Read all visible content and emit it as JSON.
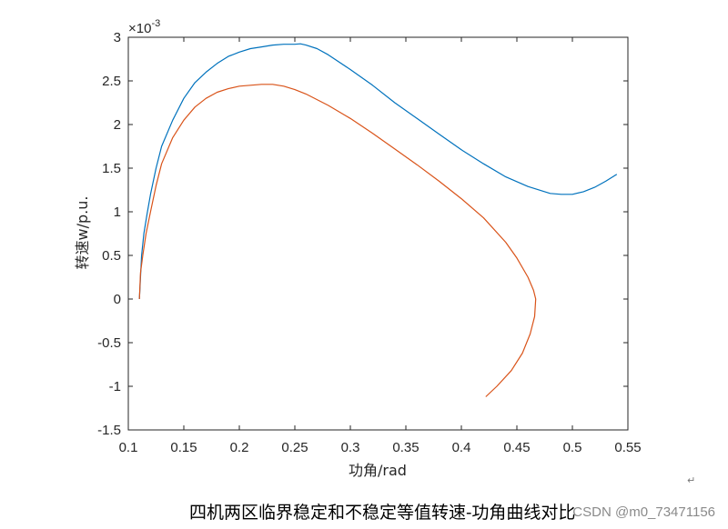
{
  "chart_data": {
    "type": "line",
    "xlabel": "功角/rad",
    "ylabel": "转速w/p.u.",
    "exponent_base": "×10",
    "exponent_power": "-3",
    "xlim": [
      0.1,
      0.55
    ],
    "ylim": [
      -1.5,
      3
    ],
    "xticks": [
      "0.1",
      "0.15",
      "0.2",
      "0.25",
      "0.3",
      "0.35",
      "0.4",
      "0.45",
      "0.5",
      "0.55"
    ],
    "yticks": [
      "-1.5",
      "-1",
      "-0.5",
      "0",
      "0.5",
      "1",
      "1.5",
      "2",
      "2.5",
      "3"
    ],
    "grid": false,
    "series": [
      {
        "color": "#0072BD",
        "x": [
          0.11,
          0.111,
          0.112,
          0.114,
          0.117,
          0.12,
          0.125,
          0.13,
          0.14,
          0.15,
          0.16,
          0.17,
          0.18,
          0.19,
          0.2,
          0.21,
          0.22,
          0.23,
          0.24,
          0.25,
          0.255,
          0.26,
          0.27,
          0.28,
          0.3,
          0.32,
          0.34,
          0.36,
          0.38,
          0.4,
          0.42,
          0.44,
          0.46,
          0.48,
          0.49,
          0.5,
          0.51,
          0.52,
          0.53,
          0.54
        ],
        "y": [
          0.0,
          0.25,
          0.5,
          0.75,
          0.98,
          1.2,
          1.5,
          1.75,
          2.05,
          2.3,
          2.48,
          2.6,
          2.7,
          2.78,
          2.83,
          2.87,
          2.89,
          2.91,
          2.92,
          2.92,
          2.925,
          2.91,
          2.87,
          2.8,
          2.63,
          2.45,
          2.25,
          2.07,
          1.89,
          1.71,
          1.55,
          1.4,
          1.29,
          1.21,
          1.2,
          1.2,
          1.23,
          1.28,
          1.35,
          1.43
        ]
      },
      {
        "color": "#D95319",
        "x": [
          0.11,
          0.111,
          0.113,
          0.116,
          0.12,
          0.125,
          0.13,
          0.14,
          0.15,
          0.16,
          0.17,
          0.18,
          0.19,
          0.2,
          0.21,
          0.22,
          0.23,
          0.24,
          0.25,
          0.26,
          0.28,
          0.3,
          0.32,
          0.34,
          0.36,
          0.38,
          0.4,
          0.42,
          0.44,
          0.45,
          0.46,
          0.465,
          0.467,
          0.466,
          0.462,
          0.455,
          0.445,
          0.432,
          0.422
        ],
        "y": [
          0.0,
          0.3,
          0.5,
          0.75,
          1.0,
          1.3,
          1.55,
          1.85,
          2.05,
          2.2,
          2.3,
          2.37,
          2.41,
          2.44,
          2.45,
          2.46,
          2.46,
          2.44,
          2.4,
          2.35,
          2.22,
          2.07,
          1.9,
          1.72,
          1.54,
          1.35,
          1.15,
          0.93,
          0.65,
          0.47,
          0.25,
          0.1,
          0.0,
          -0.2,
          -0.4,
          -0.62,
          -0.82,
          -1.0,
          -1.12
        ]
      }
    ]
  },
  "caption": "四机两区临界稳定和不稳定等值转速-功角曲线对比",
  "watermark": "CSDN @m0_73471156",
  "return_mark": "↵"
}
